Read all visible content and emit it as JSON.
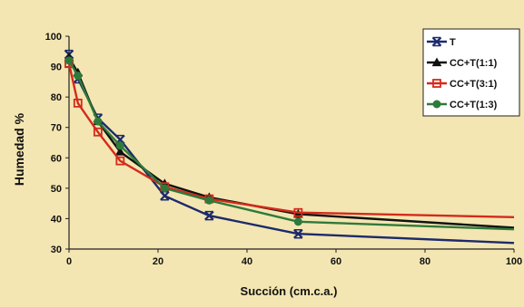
{
  "chart_data": {
    "type": "line",
    "title": "",
    "xlabel": "Succión (cm.c.a.)",
    "ylabel": "Humedad %",
    "xlim": [
      0,
      100
    ],
    "ylim": [
      30,
      100
    ],
    "x_ticks": [
      0,
      20,
      40,
      60,
      80,
      100
    ],
    "y_ticks": [
      30,
      40,
      50,
      60,
      70,
      80,
      90,
      100
    ],
    "grid": false,
    "legend_position": "top-right",
    "background": "#f3e6b2",
    "series": [
      {
        "name": "T",
        "color": "#1c2a6b",
        "marker": "x",
        "points": [
          [
            0,
            94
          ],
          [
            2,
            86
          ],
          [
            6.5,
            73
          ],
          [
            11.5,
            66
          ],
          [
            21.5,
            47.5
          ],
          [
            31.5,
            41
          ],
          [
            51.5,
            35
          ],
          [
            100,
            32
          ]
        ]
      },
      {
        "name": "CC+T(1:1)",
        "color": "#111111",
        "marker": "triangle",
        "points": [
          [
            0,
            93
          ],
          [
            2,
            88
          ],
          [
            6.5,
            72
          ],
          [
            11.5,
            62
          ],
          [
            21.5,
            51.5
          ],
          [
            31.5,
            47
          ],
          [
            51.5,
            41.5
          ],
          [
            100,
            37
          ]
        ]
      },
      {
        "name": "CC+T(3:1)",
        "color": "#d42a1c",
        "marker": "square",
        "points": [
          [
            0,
            91
          ],
          [
            2,
            78
          ],
          [
            6.5,
            68.5
          ],
          [
            11.5,
            59
          ],
          [
            21.5,
            50.5
          ],
          [
            31.5,
            46.5
          ],
          [
            51.5,
            42
          ],
          [
            100,
            40.5
          ]
        ]
      },
      {
        "name": "CC+T(1:3)",
        "color": "#2e7a3a",
        "marker": "circle",
        "points": [
          [
            0,
            92
          ],
          [
            2,
            87
          ],
          [
            6.5,
            72
          ],
          [
            11.5,
            64
          ],
          [
            21.5,
            50
          ],
          [
            31.5,
            46
          ],
          [
            51.5,
            39
          ],
          [
            100,
            36.5
          ]
        ]
      }
    ]
  }
}
